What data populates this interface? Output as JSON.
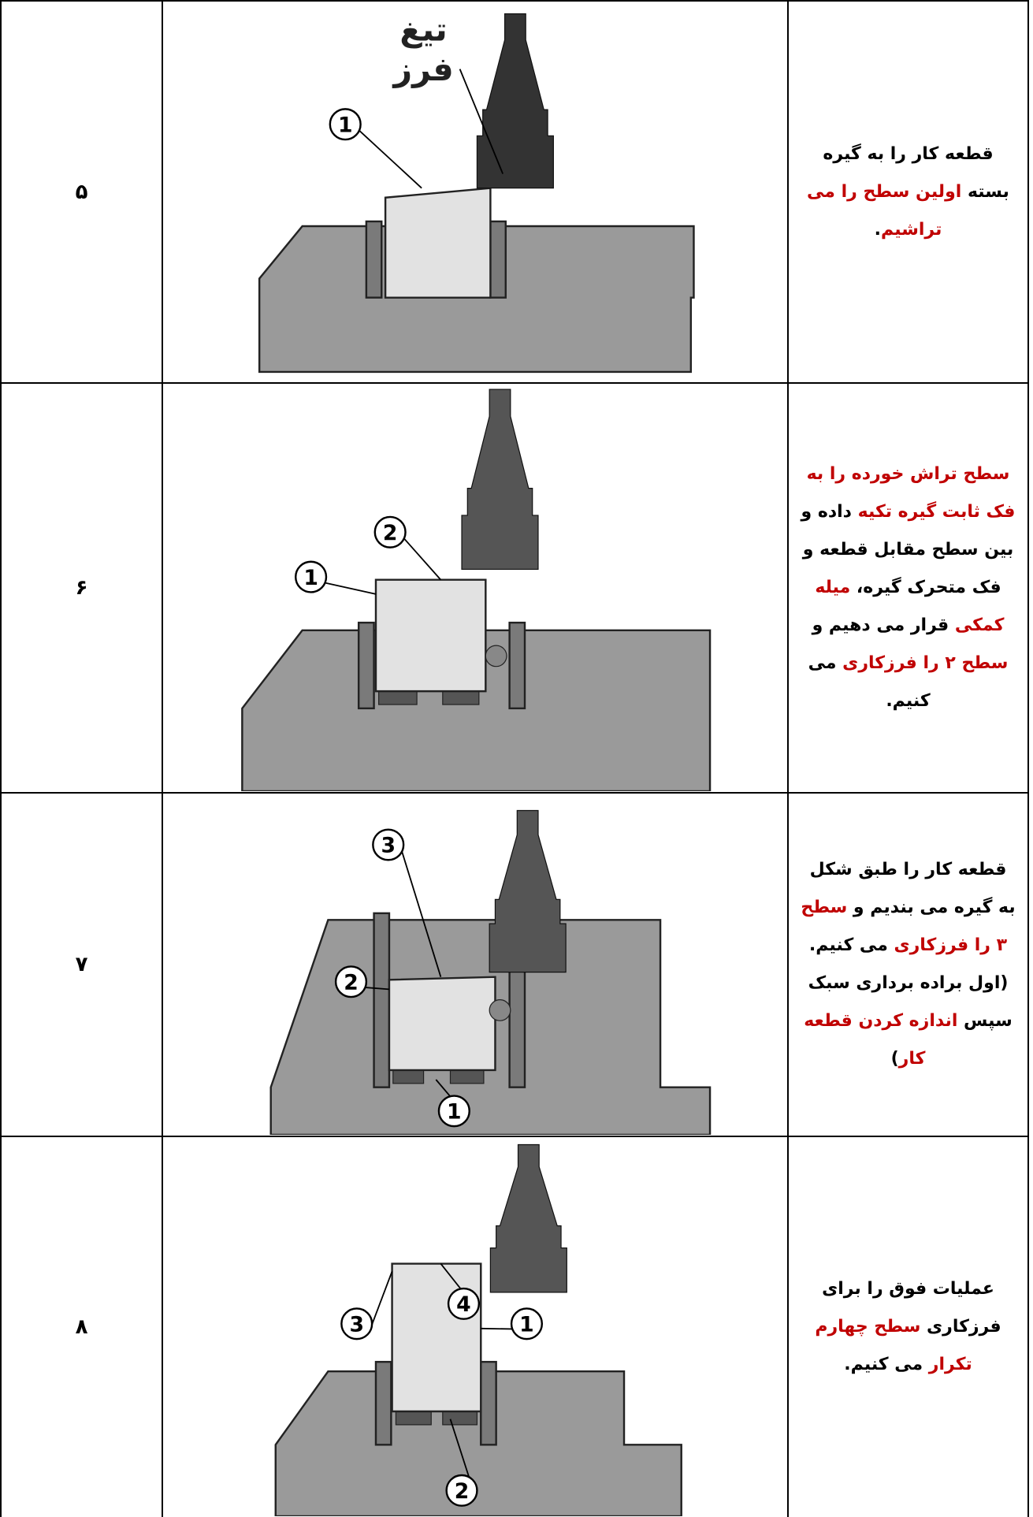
{
  "rows": [
    {
      "number": "۵",
      "text": [
        {
          "t": "قطعه کار را به گیره بسته ",
          "red": false
        },
        {
          "t": "اولین سطح را می تراشیم",
          "red": true
        },
        {
          "t": ".",
          "red": false
        }
      ],
      "figure_labels": [
        "تیغ",
        "فرز",
        "1"
      ]
    },
    {
      "number": "۶",
      "text": [
        {
          "t": "سطح تراش خورده را به فک ثابت گیره تکیه",
          "red": true
        },
        {
          "t": " داده و بین سطح مقابل قطعه و فک متحرک گیره، ",
          "red": false
        },
        {
          "t": "میله کمکی",
          "red": true
        },
        {
          "t": " قرار می دهیم و ",
          "red": false
        },
        {
          "t": "سطح ۲ را فرزکاری",
          "red": true
        },
        {
          "t": " می کنیم.",
          "red": false
        }
      ],
      "figure_labels": [
        "2",
        "1"
      ]
    },
    {
      "number": "۷",
      "text": [
        {
          "t": "قطعه کار را طبق شکل به گیره می بندیم و ",
          "red": false
        },
        {
          "t": "سطح ۳ را فرزکاری",
          "red": true
        },
        {
          "t": " می کنیم. (اول براده برداری سبک سپس ",
          "red": false
        },
        {
          "t": "اندازه کردن قطعه کار",
          "red": true
        },
        {
          "t": ")",
          "red": false
        }
      ],
      "figure_labels": [
        "3",
        "2",
        "1"
      ]
    },
    {
      "number": "۸",
      "text": [
        {
          "t": "عملیات فوق را برای فرزکاری ",
          "red": false
        },
        {
          "t": "سطح چهارم تکرار",
          "red": true
        },
        {
          "t": " می کنیم.",
          "red": false
        }
      ],
      "figure_labels": [
        "4",
        "3",
        "1",
        "2"
      ]
    }
  ]
}
